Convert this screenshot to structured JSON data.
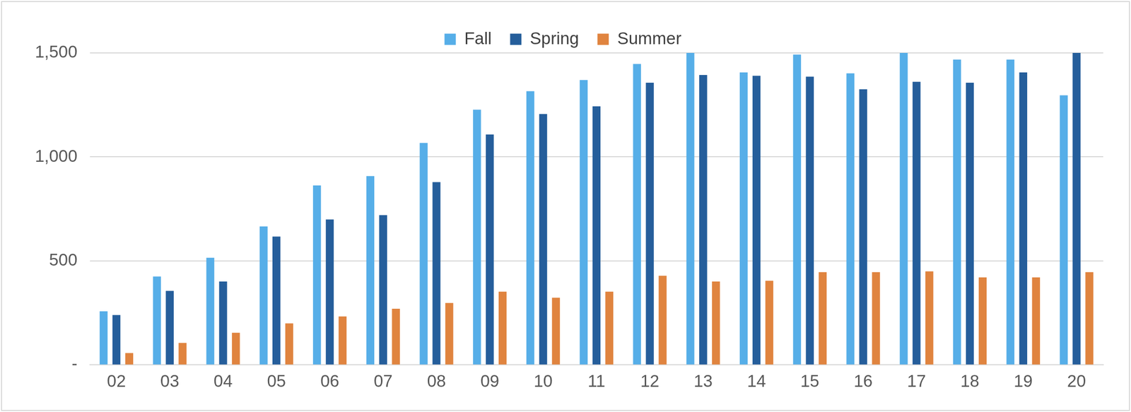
{
  "chart_data": {
    "type": "bar",
    "categories": [
      "02",
      "03",
      "04",
      "05",
      "06",
      "07",
      "08",
      "09",
      "10",
      "11",
      "12",
      "13",
      "14",
      "15",
      "16",
      "17",
      "18",
      "19",
      "20"
    ],
    "series": [
      {
        "name": "Fall",
        "color": "#56aee8",
        "values": [
          258,
          425,
          515,
          666,
          863,
          908,
          1067,
          1227,
          1316,
          1370,
          1447,
          1500,
          1406,
          1492,
          1402,
          1500,
          1468,
          1468,
          1296
        ]
      },
      {
        "name": "Spring",
        "color": "#255e9b",
        "values": [
          240,
          356,
          401,
          617,
          699,
          720,
          879,
          1108,
          1206,
          1243,
          1357,
          1394,
          1390,
          1386,
          1325,
          1361,
          1357,
          1406,
          1500
        ]
      },
      {
        "name": "Summer",
        "color": "#e0843f",
        "values": [
          57,
          106,
          155,
          200,
          233,
          270,
          298,
          352,
          323,
          352,
          429,
          401,
          405,
          446,
          446,
          450,
          421,
          421,
          446
        ]
      }
    ],
    "ylim": [
      0,
      1500
    ],
    "yticks": [
      {
        "value": 0,
        "label": "-"
      },
      500,
      {
        "value": 1000,
        "label": "1,000"
      },
      {
        "value": 1500,
        "label": "1,500"
      }
    ],
    "grid": true,
    "legend": "top"
  }
}
